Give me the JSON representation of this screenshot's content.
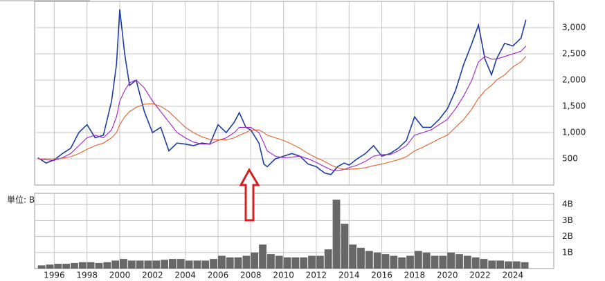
{
  "chart_data": [
    {
      "type": "line",
      "x": [
        1995.0,
        1995.5,
        1996.0,
        1996.5,
        1997.0,
        1997.5,
        1998.0,
        1998.5,
        1999.0,
        1999.5,
        1999.8,
        2000.0,
        2000.3,
        2000.6,
        2001.0,
        2001.5,
        2002.0,
        2002.5,
        2003.0,
        2003.5,
        2004.0,
        2004.5,
        2005.0,
        2005.5,
        2006.0,
        2006.5,
        2007.0,
        2007.3,
        2007.7,
        2008.0,
        2008.5,
        2008.8,
        2009.0,
        2009.5,
        2010.0,
        2010.5,
        2011.0,
        2011.5,
        2012.0,
        2012.5,
        2012.9,
        2013.3,
        2013.7,
        2014.0,
        2014.5,
        2015.0,
        2015.5,
        2016.0,
        2016.5,
        2017.0,
        2017.5,
        2018.0,
        2018.5,
        2019.0,
        2019.5,
        2020.0,
        2020.5,
        2021.0,
        2021.5,
        2021.9,
        2022.3,
        2022.7,
        2023.0,
        2023.5,
        2024.0,
        2024.5,
        2024.8
      ],
      "series": [
        {
          "color": "#1c3c9e",
          "values": [
            520,
            420,
            480,
            600,
            700,
            1000,
            1150,
            900,
            950,
            1600,
            2300,
            3350,
            2500,
            1900,
            2000,
            1400,
            1000,
            1100,
            650,
            800,
            780,
            750,
            800,
            780,
            1150,
            1000,
            1200,
            1380,
            1100,
            1050,
            800,
            400,
            350,
            500,
            550,
            600,
            550,
            400,
            350,
            230,
            200,
            350,
            420,
            380,
            500,
            600,
            750,
            550,
            600,
            700,
            850,
            1300,
            1100,
            1100,
            1250,
            1450,
            1800,
            2300,
            2700,
            3050,
            2400,
            2100,
            2400,
            2700,
            2650,
            2800,
            3150
          ]
        },
        {
          "color": "#a020c8",
          "values": [
            500,
            480,
            470,
            520,
            600,
            750,
            900,
            950,
            900,
            1050,
            1300,
            1600,
            1800,
            1950,
            2000,
            1850,
            1600,
            1400,
            1200,
            1000,
            900,
            820,
            780,
            780,
            850,
            900,
            1000,
            1100,
            1100,
            1100,
            1000,
            800,
            650,
            550,
            520,
            530,
            550,
            500,
            430,
            350,
            290,
            270,
            300,
            330,
            380,
            450,
            550,
            580,
            580,
            650,
            750,
            950,
            1000,
            1050,
            1150,
            1250,
            1450,
            1700,
            2000,
            2350,
            2450,
            2400,
            2400,
            2450,
            2500,
            2550,
            2650
          ]
        },
        {
          "color": "#e0602a",
          "values": [
            500,
            500,
            500,
            510,
            540,
            600,
            680,
            750,
            800,
            900,
            1000,
            1150,
            1300,
            1400,
            1480,
            1540,
            1550,
            1500,
            1400,
            1250,
            1100,
            1000,
            920,
            870,
            860,
            860,
            900,
            950,
            1000,
            1050,
            1050,
            1000,
            950,
            900,
            850,
            780,
            700,
            600,
            520,
            450,
            380,
            330,
            300,
            300,
            310,
            330,
            370,
            400,
            440,
            480,
            540,
            650,
            720,
            800,
            880,
            950,
            1100,
            1250,
            1450,
            1650,
            1800,
            1900,
            2000,
            2100,
            2250,
            2350,
            2450
          ]
        }
      ],
      "xlim": [
        1994.8,
        2026.5
      ],
      "ylim": [
        0,
        3500
      ],
      "yticks": [
        500,
        {
          "value": 1000,
          "label": "1,000"
        },
        {
          "value": 1500,
          "label": "1,500"
        },
        {
          "value": 2000,
          "label": "2,000"
        },
        {
          "value": 2500,
          "label": "2,500"
        },
        {
          "value": 3000,
          "label": "3,000"
        }
      ],
      "grid": true
    },
    {
      "type": "bar",
      "unit_label": "単位: B",
      "x": [
        1995.0,
        1995.5,
        1996.0,
        1996.5,
        1997.0,
        1997.5,
        1998.0,
        1998.5,
        1999.0,
        1999.5,
        2000.0,
        2000.5,
        2001.0,
        2001.5,
        2002.0,
        2002.5,
        2003.0,
        2003.5,
        2004.0,
        2004.5,
        2005.0,
        2005.5,
        2006.0,
        2006.5,
        2007.0,
        2007.5,
        2008.0,
        2008.5,
        2009.0,
        2009.5,
        2010.0,
        2010.5,
        2011.0,
        2011.5,
        2012.0,
        2012.5,
        2013.0,
        2013.5,
        2014.0,
        2014.5,
        2015.0,
        2015.5,
        2016.0,
        2016.5,
        2017.0,
        2017.5,
        2018.0,
        2018.5,
        2019.0,
        2019.5,
        2020.0,
        2020.5,
        2021.0,
        2021.5,
        2022.0,
        2022.5,
        2023.0,
        2023.5,
        2024.0,
        2024.5
      ],
      "values": [
        0.2,
        0.25,
        0.3,
        0.3,
        0.35,
        0.4,
        0.4,
        0.35,
        0.4,
        0.5,
        0.6,
        0.5,
        0.5,
        0.5,
        0.5,
        0.55,
        0.6,
        0.6,
        0.5,
        0.5,
        0.5,
        0.6,
        0.8,
        0.7,
        0.7,
        0.8,
        1.0,
        1.5,
        0.9,
        0.8,
        0.7,
        0.7,
        0.7,
        0.8,
        0.8,
        1.2,
        4.3,
        2.8,
        1.5,
        1.3,
        1.1,
        1.0,
        0.9,
        0.8,
        0.7,
        0.8,
        1.1,
        1.0,
        0.8,
        0.8,
        1.0,
        0.9,
        0.8,
        0.7,
        0.6,
        0.5,
        0.5,
        0.45,
        0.45,
        0.4
      ],
      "color": "#686868",
      "xlim": [
        1994.8,
        2026.5
      ],
      "ylim": [
        0,
        4.7
      ],
      "xticks": [
        1996,
        1998,
        2000,
        2002,
        2004,
        2006,
        2008,
        2010,
        2012,
        2014,
        2016,
        2018,
        2020,
        2022,
        2024
      ],
      "yticks": [
        {
          "value": 1,
          "label": "1B"
        },
        {
          "value": 2,
          "label": "2B"
        },
        {
          "value": 3,
          "label": "3B"
        },
        {
          "value": 4,
          "label": "4B"
        }
      ],
      "grid": true
    }
  ]
}
